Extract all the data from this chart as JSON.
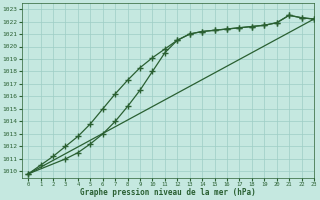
{
  "xlabel": "Graphe pression niveau de la mer (hPa)",
  "xlim": [
    -0.5,
    23
  ],
  "ylim": [
    1009.5,
    1023.5
  ],
  "yticks": [
    1010,
    1011,
    1012,
    1013,
    1014,
    1015,
    1016,
    1017,
    1018,
    1019,
    1020,
    1021,
    1022,
    1023
  ],
  "xticks": [
    0,
    1,
    2,
    3,
    4,
    5,
    6,
    7,
    8,
    9,
    10,
    11,
    12,
    13,
    14,
    15,
    16,
    17,
    18,
    19,
    20,
    21,
    22,
    23
  ],
  "background_color": "#c5e8e0",
  "grid_color": "#9ecec5",
  "line_color": "#2a6032",
  "line1_x": [
    0,
    1,
    2,
    3,
    4,
    5,
    6,
    7,
    8,
    9,
    10,
    11,
    12,
    13,
    14,
    15,
    16,
    17,
    18,
    19,
    20,
    21,
    22,
    23
  ],
  "line1_y": [
    1009.8,
    1010.5,
    1011.2,
    1012.0,
    1012.8,
    1013.8,
    1015.0,
    1016.2,
    1017.3,
    1018.3,
    1019.1,
    1019.8,
    1020.5,
    1021.0,
    1021.2,
    1021.3,
    1021.4,
    1021.5,
    1021.6,
    1021.7,
    1021.9,
    1022.5,
    1022.3,
    1022.2
  ],
  "line2_x": [
    0,
    3,
    4,
    5,
    6,
    7,
    8,
    9,
    10,
    11,
    12,
    13,
    14,
    15,
    16,
    17,
    18,
    19,
    20,
    21,
    22,
    23
  ],
  "line2_y": [
    1009.8,
    1011.0,
    1011.5,
    1012.2,
    1013.0,
    1014.0,
    1015.2,
    1016.5,
    1018.0,
    1019.5,
    1020.5,
    1021.0,
    1021.2,
    1021.3,
    1021.4,
    1021.5,
    1021.6,
    1021.7,
    1021.9,
    1022.5,
    1022.3,
    1022.2
  ],
  "line3_x": [
    0,
    23
  ],
  "line3_y": [
    1009.8,
    1022.2
  ],
  "marker": "+",
  "markersize": 5,
  "markeredgewidth": 1.0,
  "linewidth": 0.9
}
